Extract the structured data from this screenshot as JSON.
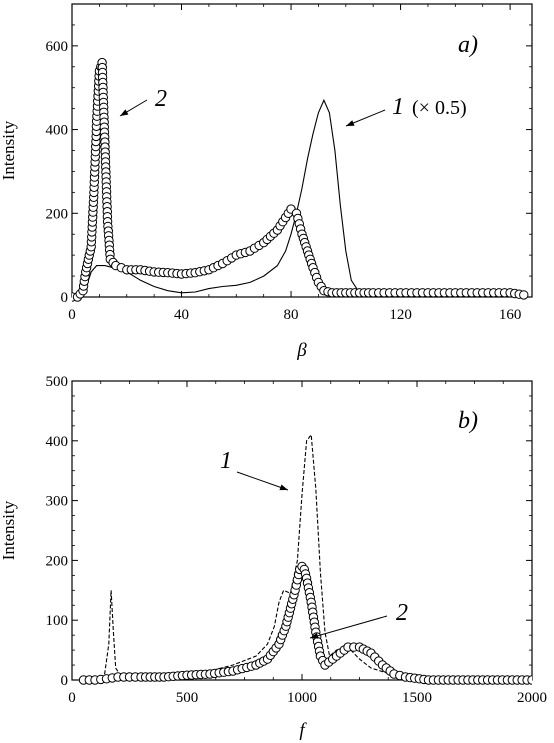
{
  "chart_data": [
    {
      "panel": "a)",
      "type": "line",
      "xlabel": "β",
      "ylabel": "Intensity",
      "xlim": [
        0,
        168
      ],
      "ylim": [
        0,
        700
      ],
      "xticks": [
        0,
        40,
        80,
        120,
        160
      ],
      "yticks": [
        0,
        200,
        400,
        600
      ],
      "annotations": [
        {
          "text": "2",
          "series": "2"
        },
        {
          "text": "1",
          "suffix": "(× 0.5)",
          "series": "1"
        }
      ],
      "series": [
        {
          "name": "1",
          "style": "solid line",
          "x": [
            0,
            3,
            5,
            7,
            9,
            12,
            15,
            20,
            25,
            30,
            35,
            40,
            45,
            50,
            55,
            60,
            65,
            70,
            75,
            78,
            80,
            82,
            84,
            86,
            88,
            90,
            92,
            94,
            96,
            98,
            100,
            102,
            105,
            110,
            120,
            130,
            140,
            150,
            160,
            165
          ],
          "y": [
            0,
            2,
            20,
            60,
            75,
            75,
            70,
            60,
            40,
            25,
            15,
            10,
            12,
            20,
            25,
            28,
            35,
            50,
            75,
            110,
            150,
            200,
            260,
            330,
            390,
            440,
            470,
            440,
            350,
            220,
            110,
            40,
            10,
            5,
            3,
            3,
            3,
            3,
            3,
            3
          ]
        },
        {
          "name": "2",
          "style": "open circles with line",
          "x": [
            0,
            2,
            4,
            5,
            6,
            7,
            8,
            9,
            10,
            11,
            12,
            13,
            14,
            16,
            18,
            20,
            25,
            30,
            35,
            40,
            45,
            50,
            55,
            60,
            65,
            70,
            75,
            78,
            80,
            82,
            84,
            86,
            88,
            90,
            92,
            95,
            100,
            105,
            110,
            120,
            130,
            140,
            150,
            160,
            165
          ],
          "y": [
            0,
            0,
            15,
            60,
            90,
            120,
            250,
            420,
            540,
            560,
            370,
            180,
            90,
            75,
            70,
            65,
            65,
            60,
            58,
            55,
            58,
            65,
            80,
            100,
            110,
            130,
            160,
            190,
            210,
            200,
            150,
            110,
            70,
            35,
            15,
            10,
            10,
            10,
            10,
            10,
            10,
            10,
            10,
            10,
            5
          ]
        }
      ]
    },
    {
      "panel": "b)",
      "type": "line",
      "xlabel": "f",
      "ylabel": "Intensity",
      "xlim": [
        0,
        2000
      ],
      "ylim": [
        0,
        500
      ],
      "xticks": [
        0,
        500,
        1000,
        1500,
        2000
      ],
      "yticks": [
        0,
        100,
        200,
        300,
        400,
        500
      ],
      "annotations": [
        {
          "text": "1",
          "series": "1"
        },
        {
          "text": "2",
          "series": "2"
        }
      ],
      "series": [
        {
          "name": "1",
          "style": "dashed line",
          "x": [
            50,
            100,
            140,
            160,
            170,
            180,
            190,
            210,
            250,
            300,
            400,
            500,
            600,
            700,
            800,
            850,
            880,
            900,
            920,
            950,
            980,
            1000,
            1020,
            1040,
            1060,
            1080,
            1100,
            1120,
            1150,
            1200,
            1250,
            1300,
            1400,
            1500,
            1600,
            1800,
            2000
          ],
          "y": [
            0,
            0,
            5,
            60,
            150,
            80,
            20,
            8,
            5,
            5,
            8,
            10,
            15,
            25,
            40,
            60,
            90,
            130,
            150,
            145,
            200,
            310,
            400,
            410,
            320,
            180,
            80,
            40,
            50,
            55,
            35,
            20,
            8,
            3,
            2,
            1,
            0
          ]
        },
        {
          "name": "2",
          "style": "open circles with line",
          "x": [
            50,
            100,
            150,
            200,
            250,
            300,
            400,
            500,
            600,
            700,
            800,
            850,
            900,
            930,
            950,
            970,
            990,
            1000,
            1010,
            1020,
            1040,
            1060,
            1080,
            1100,
            1150,
            1200,
            1250,
            1300,
            1350,
            1400,
            1450,
            1550,
            2000
          ],
          "y": [
            0,
            0,
            2,
            5,
            5,
            5,
            5,
            8,
            10,
            15,
            25,
            35,
            60,
            90,
            120,
            150,
            185,
            190,
            185,
            170,
            130,
            80,
            40,
            25,
            40,
            55,
            55,
            45,
            25,
            10,
            5,
            0,
            0
          ]
        }
      ]
    }
  ]
}
